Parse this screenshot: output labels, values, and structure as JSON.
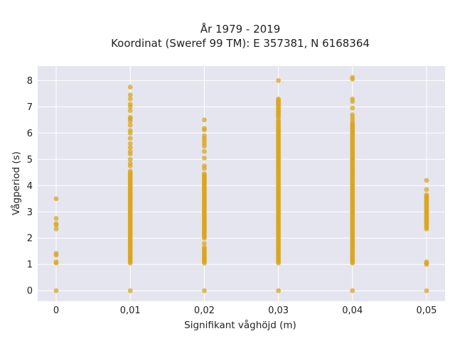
{
  "chart_data": {
    "type": "scatter",
    "title": "År 1979 - 2019",
    "subtitle": "Koordinat (Sweref 99 TM): E 357381, N 6168364",
    "xlabel": "Signifikant våghöjd (m)",
    "ylabel": "Vågperiod (s)",
    "xlim": [
      -0.0025,
      0.0525
    ],
    "ylim": [
      -0.4,
      8.55
    ],
    "x_ticks": [
      0,
      0.01,
      0.02,
      0.03,
      0.04,
      0.05
    ],
    "x_tick_labels": [
      "0",
      "0,01",
      "0,02",
      "0,03",
      "0,04",
      "0,05"
    ],
    "y_ticks": [
      0,
      1,
      2,
      3,
      4,
      5,
      6,
      7,
      8
    ],
    "y_tick_labels": [
      "0",
      "1",
      "2",
      "3",
      "4",
      "5",
      "6",
      "7",
      "8"
    ],
    "grid": true,
    "background_color": "#e5e5f0",
    "marker_color": "#daa520",
    "columns": [
      {
        "x": 0,
        "points": [
          0,
          1.05,
          1.1,
          1.35,
          1.42,
          2.35,
          2.5,
          2.55,
          2.75,
          3.5
        ]
      },
      {
        "x": 0.01,
        "points": [
          0
        ],
        "ranges": [
          [
            1.05,
            4.55
          ]
        ],
        "extra_points": [
          4.75,
          4.85,
          5.0,
          5.2,
          5.3,
          5.45,
          5.6,
          5.8,
          6.0,
          6.1,
          6.3,
          6.45,
          6.55,
          6.6,
          6.85,
          7.0,
          7.1,
          7.3,
          7.45,
          7.75
        ]
      },
      {
        "x": 0.02,
        "points": [
          0
        ],
        "ranges": [
          [
            1.05,
            1.65
          ],
          [
            2.0,
            4.45
          ]
        ],
        "extra_points": [
          1.8,
          4.65,
          4.75,
          5.05,
          5.3,
          5.5,
          5.6,
          5.7,
          5.8,
          5.9,
          6.12,
          6.18,
          6.5
        ]
      },
      {
        "x": 0.03,
        "points": [
          0
        ],
        "ranges": [
          [
            1.05,
            6.5
          ],
          [
            6.6,
            7.3
          ]
        ],
        "extra_points": [
          8.0
        ]
      },
      {
        "x": 0.04,
        "points": [
          0
        ],
        "ranges": [
          [
            1.05,
            6.4
          ]
        ],
        "extra_points": [
          6.5,
          6.6,
          6.7,
          6.95,
          7.2,
          7.3,
          8.05,
          8.12
        ]
      },
      {
        "x": 0.05,
        "points": [
          0,
          1.0,
          1.05,
          1.1
        ],
        "ranges": [
          [
            2.35,
            3.65
          ]
        ],
        "extra_points": [
          3.85,
          4.2
        ]
      }
    ]
  }
}
